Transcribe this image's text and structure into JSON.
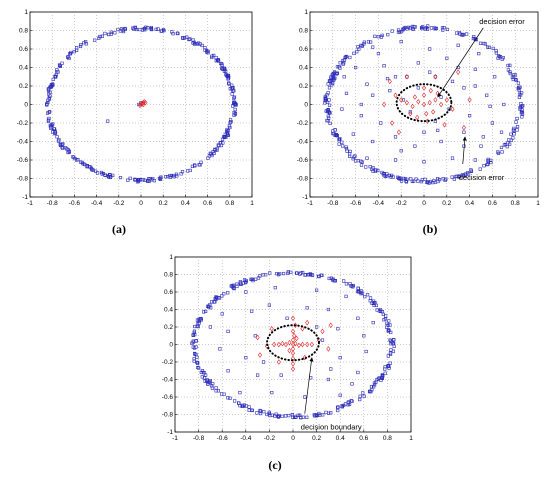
{
  "figure_labels": [
    "(a)",
    "(b)",
    "(c)"
  ],
  "colors": {
    "class_outer": "#2b2bb8",
    "class_inner": "#e02020",
    "boundary": "#000000"
  },
  "chart_data": [
    {
      "type": "scatter",
      "panel": "(a)",
      "title": "",
      "xlabel": "",
      "ylabel": "",
      "xlim": [
        -1,
        1
      ],
      "ylim": [
        -1,
        1
      ],
      "xticks": [
        -1,
        -0.8,
        -0.6,
        -0.4,
        -0.2,
        0,
        0.2,
        0.4,
        0.6,
        0.8,
        1
      ],
      "yticks": [
        -1,
        -0.8,
        -0.6,
        -0.4,
        -0.2,
        0,
        0.2,
        0.4,
        0.6,
        0.8,
        1
      ],
      "grid": true,
      "ring": {
        "rx": 0.84,
        "ry": 0.82,
        "count": 320,
        "spread": 0.02
      },
      "outer_extra": [
        [
          -0.3,
          -0.18
        ],
        [
          -0.02,
          0.0
        ],
        [
          0.0,
          0.02
        ]
      ],
      "inner_points": [
        [
          0.0,
          0.0
        ],
        [
          0.02,
          0.02
        ],
        [
          0.01,
          0.01
        ],
        [
          0.03,
          0.03
        ],
        [
          -0.01,
          -0.01
        ],
        [
          0.04,
          0.02
        ],
        [
          0.02,
          0.0
        ]
      ],
      "annotations": []
    },
    {
      "type": "scatter",
      "panel": "(b)",
      "title": "",
      "xlabel": "",
      "ylabel": "",
      "xlim": [
        -1,
        1
      ],
      "ylim": [
        -1,
        1
      ],
      "xticks": [
        -1,
        -0.8,
        -0.6,
        -0.4,
        -0.2,
        0,
        0.2,
        0.4,
        0.6,
        0.8,
        1
      ],
      "yticks": [
        -1,
        -0.8,
        -0.6,
        -0.4,
        -0.2,
        0,
        0.2,
        0.4,
        0.6,
        0.8,
        1
      ],
      "grid": true,
      "ring": {
        "rx": 0.85,
        "ry": 0.83,
        "count": 300,
        "spread": 0.025
      },
      "outer_extra": [
        [
          -0.45,
          0.62
        ],
        [
          -0.2,
          0.68
        ],
        [
          0.05,
          0.6
        ],
        [
          0.3,
          0.64
        ],
        [
          0.48,
          0.55
        ],
        [
          -0.6,
          0.4
        ],
        [
          -0.35,
          0.42
        ],
        [
          -0.05,
          0.45
        ],
        [
          0.2,
          0.5
        ],
        [
          0.45,
          0.38
        ],
        [
          0.62,
          0.3
        ],
        [
          -0.68,
          0.12
        ],
        [
          -0.5,
          0.22
        ],
        [
          -0.3,
          0.15
        ],
        [
          0.35,
          0.18
        ],
        [
          0.55,
          0.1
        ],
        [
          0.7,
          0.0
        ],
        [
          -0.72,
          -0.05
        ],
        [
          -0.55,
          -0.12
        ],
        [
          -0.38,
          -0.2
        ],
        [
          0.4,
          -0.12
        ],
        [
          0.6,
          -0.2
        ],
        [
          -0.62,
          -0.32
        ],
        [
          -0.45,
          -0.4
        ],
        [
          -0.25,
          -0.35
        ],
        [
          -0.08,
          -0.45
        ],
        [
          0.15,
          -0.4
        ],
        [
          0.35,
          -0.45
        ],
        [
          0.52,
          -0.35
        ],
        [
          0.68,
          -0.3
        ],
        [
          -0.5,
          -0.58
        ],
        [
          -0.25,
          -0.6
        ],
        [
          0.0,
          -0.62
        ],
        [
          0.25,
          -0.58
        ],
        [
          0.45,
          -0.6
        ],
        [
          -0.32,
          0.28
        ],
        [
          0.1,
          0.3
        ],
        [
          0.25,
          0.25
        ],
        [
          -0.15,
          0.3
        ],
        [
          0.5,
          -0.45
        ],
        [
          -0.7,
          0.3
        ],
        [
          0.65,
          0.5
        ],
        [
          -0.4,
          0.55
        ],
        [
          0.12,
          -0.28
        ],
        [
          -0.2,
          -0.5
        ],
        [
          0.3,
          0.4
        ],
        [
          -0.55,
          0.0
        ],
        [
          0.58,
          -0.02
        ],
        [
          -0.18,
          0.05
        ],
        [
          0.22,
          -0.05
        ],
        [
          -0.12,
          -0.08
        ],
        [
          0.15,
          0.08
        ],
        [
          -0.05,
          0.18
        ],
        [
          0.1,
          -0.18
        ],
        [
          -0.25,
          0.3
        ],
        [
          0.35,
          -0.3
        ],
        [
          -0.45,
          0.1
        ],
        [
          0.45,
          0.2
        ],
        [
          0.0,
          -0.3
        ],
        [
          0.05,
          0.35
        ]
      ],
      "inner_points": [
        [
          0.0,
          0.0
        ],
        [
          0.05,
          0.02
        ],
        [
          -0.05,
          0.03
        ],
        [
          0.1,
          0.05
        ],
        [
          -0.1,
          -0.02
        ],
        [
          0.15,
          0.0
        ],
        [
          -0.15,
          0.02
        ],
        [
          0.0,
          0.1
        ],
        [
          0.02,
          -0.1
        ],
        [
          0.08,
          -0.08
        ],
        [
          -0.08,
          0.08
        ],
        [
          0.2,
          0.05
        ],
        [
          -0.2,
          0.05
        ],
        [
          0.0,
          0.18
        ],
        [
          0.03,
          -0.18
        ],
        [
          0.12,
          0.12
        ],
        [
          -0.12,
          -0.1
        ],
        [
          -0.25,
          0.1
        ],
        [
          0.25,
          -0.05
        ],
        [
          -0.06,
          -0.14
        ],
        [
          0.06,
          0.15
        ],
        [
          -0.3,
          0.25
        ],
        [
          -0.28,
          -0.2
        ],
        [
          0.3,
          0.35
        ],
        [
          0.1,
          0.3
        ],
        [
          -0.15,
          0.3
        ],
        [
          0.35,
          -0.25
        ],
        [
          -0.22,
          -0.3
        ],
        [
          0.18,
          -0.22
        ],
        [
          0.4,
          0.05
        ],
        [
          -0.35,
          0.0
        ]
      ],
      "boundary": {
        "cx": 0.0,
        "cy": 0.02,
        "rx": 0.24,
        "ry": 0.2
      },
      "annotations": [
        {
          "text": "decision error",
          "tx": 0.52,
          "ty": 0.85,
          "ax": 0.12,
          "ay": 0.08,
          "anchor": "start",
          "dy": -2
        },
        {
          "text": "decision error",
          "tx": 0.34,
          "ty": -0.73,
          "ax": 0.36,
          "ay": -0.35,
          "anchor": "start",
          "dy": 8
        }
      ]
    },
    {
      "type": "scatter",
      "panel": "(c)",
      "title": "",
      "xlabel": "",
      "ylabel": "",
      "xlim": [
        -1,
        1
      ],
      "ylim": [
        -1,
        1
      ],
      "xticks": [
        -1,
        -0.8,
        -0.6,
        -0.4,
        -0.2,
        0,
        0.2,
        0.4,
        0.6,
        0.8,
        1
      ],
      "yticks": [
        -1,
        -0.8,
        -0.6,
        -0.4,
        -0.2,
        0,
        0.2,
        0.4,
        0.6,
        0.8,
        1
      ],
      "grid": true,
      "ring": {
        "rx": 0.84,
        "ry": 0.82,
        "count": 300,
        "spread": 0.025
      },
      "outer_extra": [
        [
          -0.4,
          0.6
        ],
        [
          -0.15,
          0.65
        ],
        [
          0.2,
          0.62
        ],
        [
          0.45,
          0.55
        ],
        [
          -0.6,
          0.35
        ],
        [
          -0.35,
          0.38
        ],
        [
          0.12,
          0.42
        ],
        [
          0.3,
          0.4
        ],
        [
          0.55,
          0.3
        ],
        [
          -0.55,
          0.15
        ],
        [
          0.38,
          0.18
        ],
        [
          0.6,
          0.1
        ],
        [
          -0.62,
          -0.05
        ],
        [
          -0.4,
          -0.15
        ],
        [
          0.4,
          -0.15
        ],
        [
          0.62,
          -0.08
        ],
        [
          -0.55,
          -0.3
        ],
        [
          -0.3,
          -0.35
        ],
        [
          0.3,
          -0.4
        ],
        [
          0.55,
          -0.32
        ],
        [
          -0.45,
          -0.55
        ],
        [
          -0.18,
          -0.55
        ],
        [
          0.1,
          -0.6
        ],
        [
          0.4,
          -0.58
        ],
        [
          -0.2,
          0.45
        ],
        [
          0.2,
          0.2
        ],
        [
          -0.32,
          0.1
        ],
        [
          0.32,
          -0.28
        ],
        [
          -0.1,
          -0.35
        ],
        [
          0.15,
          -0.38
        ],
        [
          -0.05,
          0.3
        ],
        [
          0.5,
          -0.45
        ],
        [
          -0.7,
          0.2
        ],
        [
          0.68,
          0.25
        ],
        [
          -0.25,
          -0.2
        ],
        [
          0.25,
          0.05
        ]
      ],
      "inner_points": [
        [
          0.0,
          0.0
        ],
        [
          0.02,
          0.01
        ],
        [
          -0.03,
          0.02
        ],
        [
          0.05,
          -0.01
        ],
        [
          -0.06,
          0.0
        ],
        [
          0.08,
          0.0
        ],
        [
          -0.09,
          0.01
        ],
        [
          0.12,
          0.0
        ],
        [
          -0.12,
          0.0
        ],
        [
          0.16,
          0.0
        ],
        [
          -0.16,
          0.0
        ],
        [
          0.0,
          0.05
        ],
        [
          0.0,
          -0.05
        ],
        [
          0.01,
          0.1
        ],
        [
          0.0,
          -0.1
        ],
        [
          0.0,
          0.15
        ],
        [
          0.0,
          -0.16
        ],
        [
          0.02,
          0.22
        ],
        [
          0.0,
          -0.22
        ],
        [
          0.03,
          0.07
        ],
        [
          -0.03,
          -0.07
        ],
        [
          0.0,
          0.3
        ],
        [
          0.0,
          -0.28
        ],
        [
          -0.3,
          0.08
        ],
        [
          0.3,
          -0.05
        ],
        [
          0.12,
          0.25
        ],
        [
          -0.12,
          -0.2
        ],
        [
          -0.28,
          -0.12
        ],
        [
          0.25,
          0.15
        ],
        [
          -0.18,
          0.18
        ],
        [
          0.1,
          -0.15
        ],
        [
          0.22,
          0.05
        ],
        [
          -0.22,
          -0.02
        ],
        [
          0.08,
          0.18
        ],
        [
          0.32,
          0.22
        ]
      ],
      "boundary": {
        "cx": 0.0,
        "cy": 0.02,
        "rx": 0.22,
        "ry": 0.2
      },
      "annotations": [
        {
          "text": "decision boundary",
          "tx": 0.1,
          "ty": -0.88,
          "ax": 0.16,
          "ay": -0.15,
          "anchor": "start",
          "dy": 8
        }
      ]
    }
  ]
}
